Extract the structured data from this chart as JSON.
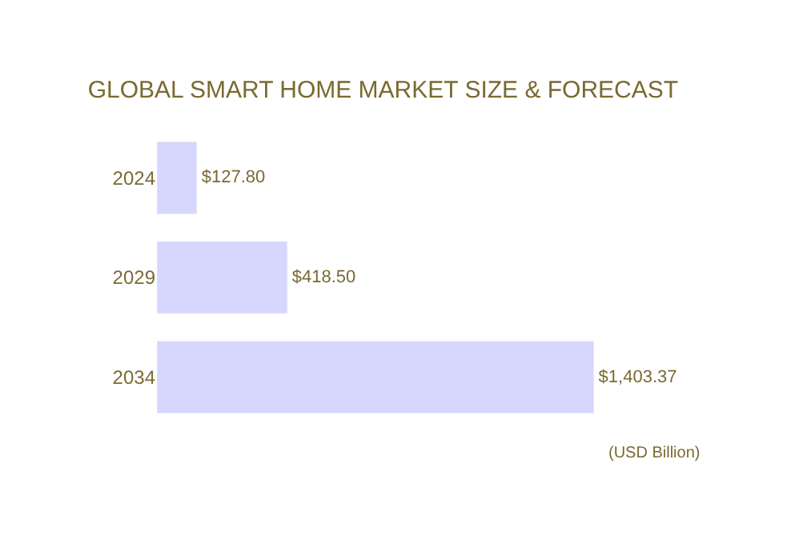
{
  "chart_data": {
    "type": "bar",
    "orientation": "horizontal",
    "title": "GLOBAL SMART HOME MARKET SIZE & FORECAST",
    "categories": [
      "2024",
      "2029",
      "2034"
    ],
    "values": [
      127.8,
      418.5,
      1403.37
    ],
    "value_labels": [
      "$127.80",
      "$418.50",
      "$1,403.37"
    ],
    "color": "#d6d6fe",
    "annotations": [
      "(USD Billion)"
    ]
  }
}
